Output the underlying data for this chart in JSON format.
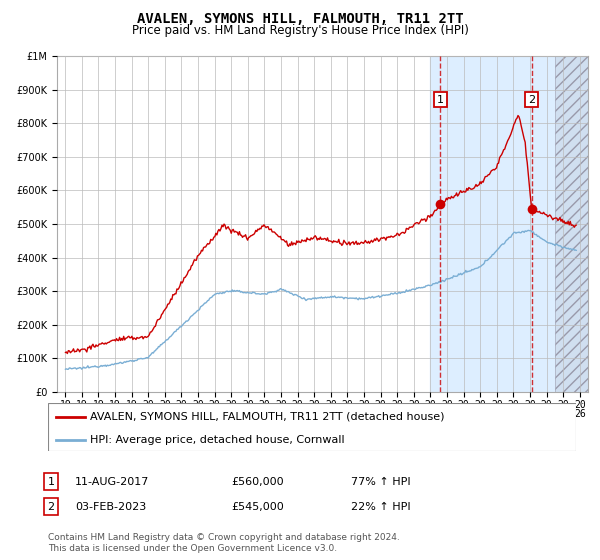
{
  "title": "AVALEN, SYMONS HILL, FALMOUTH, TR11 2TT",
  "subtitle": "Price paid vs. HM Land Registry's House Price Index (HPI)",
  "footer": "Contains HM Land Registry data © Crown copyright and database right 2024.\nThis data is licensed under the Open Government Licence v3.0.",
  "legend_line1": "AVALEN, SYMONS HILL, FALMOUTH, TR11 2TT (detached house)",
  "legend_line2": "HPI: Average price, detached house, Cornwall",
  "sale1_label": "11-AUG-2017",
  "sale1_price": "£560,000",
  "sale1_hpi": "77% ↑ HPI",
  "sale2_label": "03-FEB-2023",
  "sale2_price": "£545,000",
  "sale2_hpi": "22% ↑ HPI",
  "sale1_x": 2017.6,
  "sale2_x": 2023.1,
  "sale1_y": 560000,
  "sale2_y": 545000,
  "ylim": [
    0,
    1000000
  ],
  "xlim": [
    1994.5,
    2026.5
  ],
  "hatch_start": 2024.5,
  "bg_blue_start": 2017.0,
  "red_line_color": "#cc0000",
  "blue_line_color": "#7aaed4",
  "bg_color": "#ddeeff",
  "chart_bg": "#ffffff",
  "grid_color": "#bbbbbb",
  "title_fontsize": 10,
  "subtitle_fontsize": 8.5,
  "tick_label_fontsize": 7,
  "legend_fontsize": 8,
  "footer_fontsize": 6.5
}
